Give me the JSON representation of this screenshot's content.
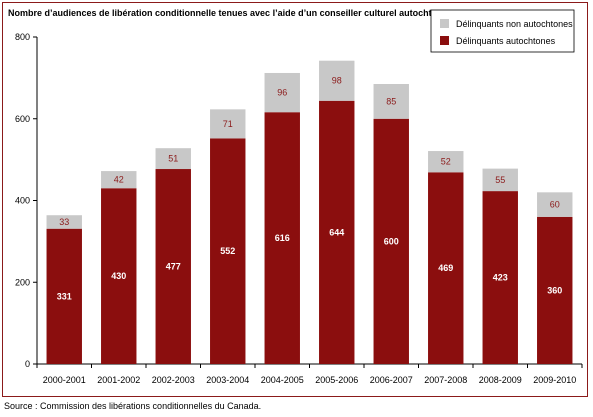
{
  "chart_data": {
    "type": "bar",
    "stacked": true,
    "title": "Nombre d’audiences de libération conditionnelle tenues avec l’aide d’un conseiller culturel autochtone",
    "xlabel": "",
    "ylabel": "",
    "ylim": [
      0,
      800
    ],
    "yticks": [
      0,
      200,
      400,
      600,
      800
    ],
    "grid": false,
    "legend_position": "top-right",
    "categories": [
      "2000-2001",
      "2001-2002",
      "2002-2003",
      "2003-2004",
      "2004-2005",
      "2005-2006",
      "2006-2007",
      "2007-2008",
      "2008-2009",
      "2009-2010"
    ],
    "series": [
      {
        "name": "Délinquants autochtones",
        "color": "#8b0e0e",
        "values": [
          331,
          430,
          477,
          552,
          616,
          644,
          600,
          469,
          423,
          360
        ]
      },
      {
        "name": "Délinquants non autochtones",
        "color": "#c8c8c8",
        "values": [
          33,
          42,
          51,
          71,
          96,
          98,
          85,
          52,
          55,
          60
        ]
      }
    ]
  },
  "source": "Source : Commission des libérations conditionnelles du Canada."
}
